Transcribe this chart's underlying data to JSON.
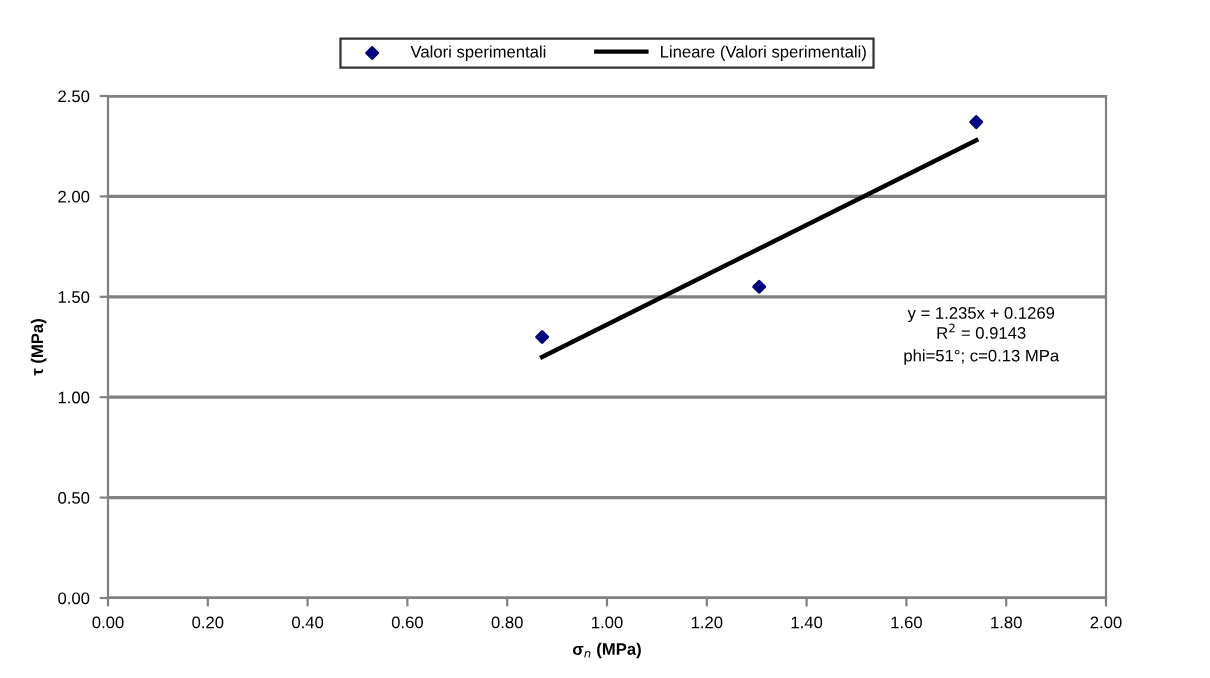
{
  "chart_data": {
    "type": "scatter",
    "xlabel": "σ$_{n}$ (MPa)",
    "ylabel": "τ (MPa)",
    "xlim": [
      0,
      2
    ],
    "xticks": [
      {
        "value": 0,
        "label": "0.00"
      },
      {
        "value": 0.2,
        "label": "0.20"
      },
      {
        "value": 0.4,
        "label": "0.40"
      },
      {
        "value": 0.6,
        "label": "0.60"
      },
      {
        "value": 0.8,
        "label": "0.80"
      },
      {
        "value": 1,
        "label": "1.00"
      },
      {
        "value": 1.2,
        "label": "1.20"
      },
      {
        "value": 1.4,
        "label": "1.40"
      },
      {
        "value": 1.6,
        "label": "1.60"
      },
      {
        "value": 1.8,
        "label": "1.80"
      },
      {
        "value": 2,
        "label": "2.00"
      }
    ],
    "ylim": [
      0,
      2.5
    ],
    "yticks": [
      {
        "value": 0,
        "label": "0.00"
      },
      {
        "value": 0.5,
        "label": "0.50"
      },
      {
        "value": 1,
        "label": "1.00"
      },
      {
        "value": 1.5,
        "label": "1.50"
      },
      {
        "value": 2,
        "label": "2.00"
      },
      {
        "value": 2.5,
        "label": "2.50"
      }
    ],
    "grid": "y",
    "legend": "top",
    "series": [
      {
        "name": "Valori sperimentali",
        "marker": "diamond",
        "color": "#000080",
        "x": [
          0.87,
          1.305,
          1.74
        ],
        "values": [
          1.3,
          1.55,
          2.37
        ]
      },
      {
        "name": "Lineare (Valori sperimentali)",
        "type": "line",
        "marker": "none",
        "line_style": "solid",
        "color": "#000000",
        "x": [
          0.87,
          1.74
        ],
        "values": [
          1.2,
          2.28
        ]
      }
    ],
    "annotations": [
      "y = 1.235x + 0.1269",
      "R$^{2}$ = 0.9143",
      "phi=51°; c=0.13 MPa"
    ]
  }
}
